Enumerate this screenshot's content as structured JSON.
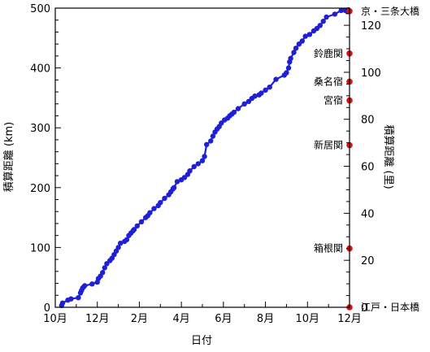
{
  "chart_data": {
    "type": "line",
    "xlabel": "日付",
    "ylabel_left": "積算距離 (km)",
    "ylabel_right": "積算距離 (里)",
    "series_color": "#1f1fd6",
    "marker_color": "#1f1fd6",
    "station_color": "#e01010",
    "x_ticks": [
      {
        "x": 0,
        "label": "10月"
      },
      {
        "x": 2,
        "label": "12月"
      },
      {
        "x": 4,
        "label": "2月"
      },
      {
        "x": 6,
        "label": "4月"
      },
      {
        "x": 8,
        "label": "6月"
      },
      {
        "x": 10,
        "label": "8月"
      },
      {
        "x": 12,
        "label": "10月"
      },
      {
        "x": 14,
        "label": "12月"
      }
    ],
    "xlim": [
      0,
      14
    ],
    "ylim_left": [
      0,
      500
    ],
    "y_ticks_left": [
      0,
      100,
      200,
      300,
      400,
      500
    ],
    "ylim_right": [
      0,
      127.3
    ],
    "y_ticks_right": [
      0,
      20,
      40,
      60,
      80,
      100,
      120
    ],
    "series": [
      {
        "x": [
          0.3,
          0.35,
          0.6,
          0.75,
          1.1,
          1.2,
          1.25,
          1.3,
          1.35,
          1.4,
          1.75,
          2.0,
          2.05,
          2.15,
          2.25,
          2.35,
          2.45,
          2.6,
          2.7,
          2.8,
          2.9,
          3.0,
          3.1,
          3.3,
          3.4,
          3.5,
          3.6,
          3.7,
          3.75,
          3.9,
          4.1,
          4.3,
          4.4,
          4.5,
          4.7,
          4.9,
          5.0,
          5.2,
          5.4,
          5.5,
          5.6,
          5.65,
          5.8,
          6.0,
          6.15,
          6.3,
          6.4,
          6.6,
          6.8,
          7.0,
          7.1,
          7.2,
          7.4,
          7.5,
          7.6,
          7.7,
          7.8,
          7.9,
          8.05,
          8.2,
          8.3,
          8.4,
          8.5,
          8.7,
          9.0,
          9.2,
          9.35,
          9.5,
          9.7,
          9.8,
          10.0,
          10.2,
          10.5,
          10.9,
          11.0,
          11.1,
          11.15,
          11.2,
          11.35,
          11.45,
          11.6,
          11.75,
          11.9,
          12.1,
          12.3,
          12.45,
          12.6,
          12.75,
          12.9,
          13.3,
          13.6,
          13.8,
          13.9,
          13.95
        ],
        "y": [
          3,
          7,
          12,
          14,
          16,
          24,
          28,
          32,
          34,
          36,
          39,
          42,
          48,
          52,
          58,
          66,
          73,
          78,
          82,
          88,
          94,
          100,
          107,
          110,
          113,
          120,
          124,
          128,
          130,
          136,
          143,
          150,
          153,
          158,
          165,
          170,
          175,
          182,
          188,
          193,
          198,
          200,
          210,
          213,
          217,
          222,
          228,
          235,
          240,
          245,
          252,
          272,
          278,
          286,
          293,
          298,
          302,
          308,
          313,
          316,
          320,
          323,
          326,
          332,
          340,
          344,
          349,
          353,
          355,
          358,
          363,
          368,
          381,
          388,
          392,
          400,
          410,
          416,
          426,
          433,
          440,
          445,
          453,
          456,
          462,
          466,
          471,
          478,
          485,
          490,
          496,
          496,
          494,
          497
        ]
      }
    ],
    "stations": [
      {
        "label": "江戸・日本橋",
        "ri": 0
      },
      {
        "label": "箱根関",
        "ri": 25
      },
      {
        "label": "新居関",
        "ri": 69
      },
      {
        "label": "宮宿",
        "ri": 88
      },
      {
        "label": "桑名宿",
        "ri": 96
      },
      {
        "label": "鈴鹿関",
        "ri": 108
      },
      {
        "label": "京・三条大橋",
        "ri": 126
      }
    ]
  }
}
